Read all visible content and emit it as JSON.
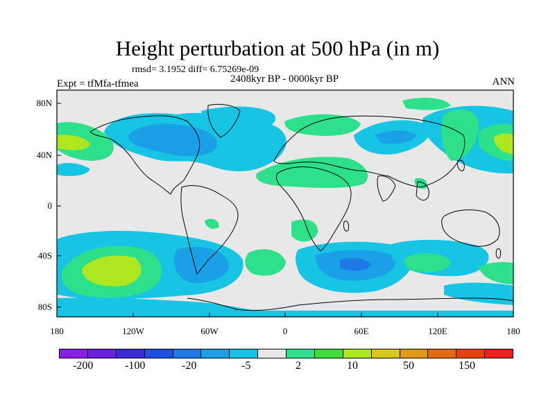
{
  "title": "Height perturbation at 500 hPa (in m)",
  "stats_line": "rmsd= 3.1952 diff= 6.75269e-09",
  "period": "2408kyr BP - 0000kyr BP",
  "experiment": "Expt = tfMfa-tfmea",
  "season": "ANN",
  "lat_ticks": [
    "80N",
    "40N",
    "0",
    "40S",
    "80S"
  ],
  "lon_ticks": [
    "180",
    "120W",
    "60W",
    "0",
    "60E",
    "120E",
    "180"
  ],
  "colorbar": {
    "colors": [
      "#8a1fe6",
      "#6a1ee0",
      "#3b2ad6",
      "#1f4fe0",
      "#1e78e6",
      "#1aa0e6",
      "#17c4e3",
      "#e8e8e8",
      "#2ee08a",
      "#3fdc3a",
      "#aee61f",
      "#d7c81a",
      "#e09a16",
      "#e56a13",
      "#e8400f",
      "#f01e1e"
    ],
    "labels": [
      "-200",
      "-100",
      "-20",
      "-5",
      "2",
      "10",
      "50",
      "150"
    ]
  },
  "map_colors": {
    "neutral": "#e8e8e8",
    "neg_light": "#17c4e3",
    "neg_mid": "#1aa0e6",
    "neg_dark": "#1e78e6",
    "pos_light": "#2ee08a",
    "pos_mid": "#aee61f"
  }
}
